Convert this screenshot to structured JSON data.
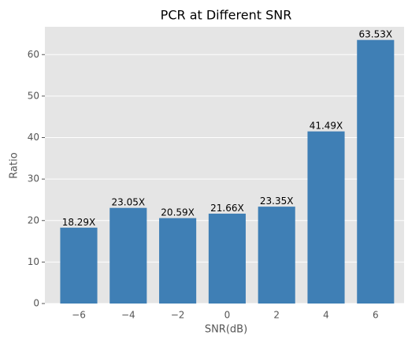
{
  "chart_data": {
    "type": "bar",
    "title": "PCR at Different SNR",
    "x_label": "SNR(dB)",
    "y_label": "Ratio",
    "categories": [
      "−6",
      "−4",
      "−2",
      "0",
      "2",
      "4",
      "6"
    ],
    "values": [
      18.29,
      23.05,
      20.59,
      21.66,
      23.35,
      41.49,
      63.53
    ],
    "value_labels": [
      "18.29X",
      "23.05X",
      "20.59X",
      "21.66X",
      "23.35X",
      "41.49X",
      "63.53X"
    ],
    "color": "#3f7fb5",
    "ylim": [
      0,
      66.7
    ],
    "yticks": [
      0,
      10,
      20,
      30,
      40,
      50,
      60
    ],
    "grid": true
  }
}
